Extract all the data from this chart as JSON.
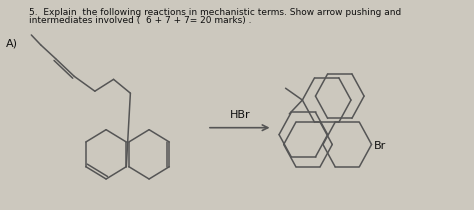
{
  "bg_color": "#ccc8be",
  "title_line1": "5.  Explain  the following reactions in mechanistic terms. Show arrow pushing and",
  "title_line2": "intermediates involved (  6 + 7 + 7= 20 marks) .",
  "title_fontsize": 6.5,
  "title_color": "#111111",
  "label_A": "A)",
  "label_A_fontsize": 8,
  "reagent": "HBr",
  "reagent_fontsize": 8,
  "br_label": "Br",
  "br_fontsize": 8,
  "line_color": "#555555",
  "line_width": 1.1
}
